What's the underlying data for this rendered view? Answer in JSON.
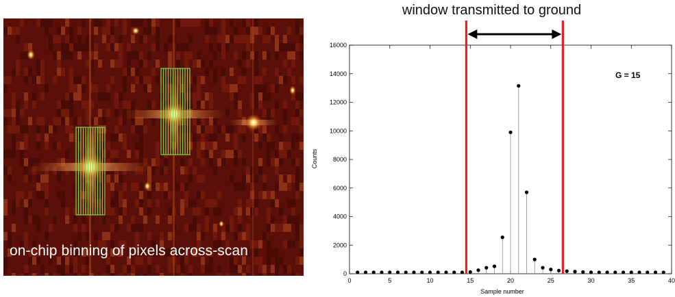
{
  "caption": "on-chip binning of pixels across-scan",
  "window_label": "window transmitted to ground",
  "gain_label": "G = 15",
  "colors": {
    "ccd_background": "#5a1008",
    "star_core": "#f8f0a0",
    "bin_box": "#7ed64a",
    "window_lines": "#e0232a",
    "arrow": "#000000",
    "stems": "#888888",
    "points": "#000000"
  },
  "chart_data": {
    "type": "scatter",
    "title": "",
    "xlabel": "Sample number",
    "ylabel": "Counts",
    "xlim": [
      0,
      40
    ],
    "ylim": [
      0,
      16000
    ],
    "xticks": [
      0,
      5,
      10,
      15,
      20,
      25,
      30,
      35,
      40
    ],
    "yticks": [
      0,
      2000,
      4000,
      6000,
      8000,
      10000,
      12000,
      14000,
      16000
    ],
    "grid": false,
    "stems": true,
    "x": [
      1,
      2,
      3,
      4,
      5,
      6,
      7,
      8,
      9,
      10,
      11,
      12,
      13,
      14,
      15,
      16,
      17,
      18,
      19,
      20,
      21,
      22,
      23,
      24,
      25,
      26,
      27,
      28,
      29,
      30,
      31,
      32,
      33,
      34,
      35,
      36,
      37,
      38,
      39
    ],
    "y": [
      100,
      100,
      100,
      100,
      100,
      100,
      100,
      100,
      100,
      100,
      100,
      100,
      100,
      100,
      120,
      250,
      420,
      520,
      2550,
      9900,
      13150,
      5700,
      1000,
      420,
      300,
      220,
      180,
      150,
      120,
      100,
      100,
      100,
      100,
      100,
      100,
      100,
      100,
      100,
      100
    ],
    "window": [
      14.5,
      26.5
    ],
    "annotations": [
      "window transmitted to ground",
      "G = 15"
    ]
  }
}
